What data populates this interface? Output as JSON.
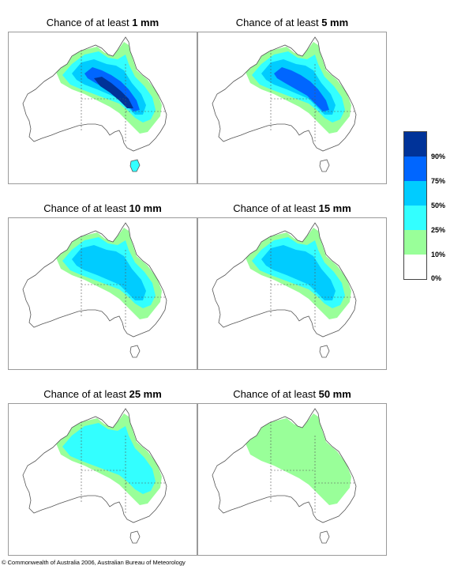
{
  "title_prefix": "Chance of at least",
  "panels": [
    {
      "amount": "1 mm",
      "levels": [
        1,
        2,
        3,
        4,
        5
      ]
    },
    {
      "amount": "5 mm",
      "levels": [
        1,
        2,
        3,
        4
      ]
    },
    {
      "amount": "10 mm",
      "levels": [
        1,
        2,
        3
      ]
    },
    {
      "amount": "15 mm",
      "levels": [
        1,
        2,
        3
      ]
    },
    {
      "amount": "25 mm",
      "levels": [
        1,
        2
      ]
    },
    {
      "amount": "50 mm",
      "levels": [
        1
      ]
    }
  ],
  "legend": {
    "colors": [
      "#003399",
      "#0066ff",
      "#00ccff",
      "#33ffff",
      "#99ff99",
      "#ffffff"
    ],
    "labels": [
      "90%",
      "75%",
      "50%",
      "25%",
      "10%",
      "0%"
    ]
  },
  "copyright": "© Commonwealth of Australia 2006, Australian Bureau of Meteorology"
}
